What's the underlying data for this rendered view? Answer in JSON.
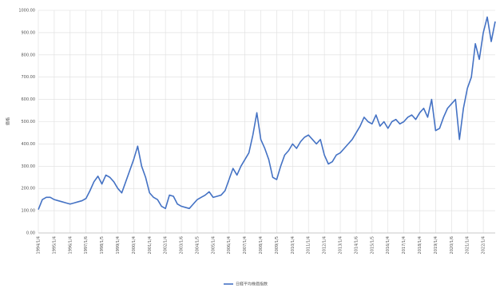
{
  "chart_data": {
    "type": "line",
    "y_label": "価格",
    "categories": [
      "1994/1/4",
      null,
      null,
      null,
      "1995/1/4",
      null,
      null,
      null,
      "1996/1/4",
      null,
      null,
      null,
      "1997/1/6",
      null,
      null,
      null,
      "1998/1/5",
      null,
      null,
      null,
      "1999/1/4",
      null,
      null,
      null,
      "2000/1/4",
      null,
      null,
      null,
      "2001/1/4",
      null,
      null,
      null,
      "2002/1/4",
      null,
      null,
      null,
      "2003/1/6",
      null,
      null,
      null,
      "2004/1/5",
      null,
      null,
      null,
      "2005/1/4",
      null,
      null,
      null,
      "2006/1/4",
      null,
      null,
      null,
      "2007/1/4",
      null,
      null,
      null,
      "2008/1/4",
      null,
      null,
      null,
      "2009/1/5",
      null,
      null,
      null,
      "2010/1/4",
      null,
      null,
      null,
      "2011/1/4",
      null,
      null,
      null,
      "2012/1/4",
      null,
      null,
      null,
      "2013/1/4",
      null,
      null,
      null,
      "2014/1/6",
      null,
      null,
      null,
      "2015/1/5",
      null,
      null,
      null,
      "2016/1/4",
      null,
      null,
      null,
      "2017/1/4",
      null,
      null,
      null,
      "2018/1/4",
      null,
      null,
      null,
      "2019/1/4",
      null,
      null,
      null,
      "2020/1/6",
      null,
      null,
      null,
      "2021/1/4",
      null,
      null,
      null,
      "2022/1/4",
      null,
      null,
      null
    ],
    "series": [
      {
        "name": "日経平均株価指数",
        "color": "#4472c4",
        "values": [
          105,
          150,
          160,
          160,
          150,
          145,
          140,
          135,
          130,
          135,
          140,
          145,
          155,
          190,
          230,
          255,
          220,
          260,
          250,
          230,
          200,
          180,
          230,
          280,
          330,
          390,
          300,
          250,
          180,
          160,
          150,
          120,
          110,
          170,
          165,
          130,
          120,
          115,
          110,
          130,
          150,
          160,
          170,
          185,
          160,
          165,
          170,
          190,
          240,
          290,
          260,
          300,
          330,
          360,
          440,
          540,
          420,
          380,
          330,
          250,
          240,
          300,
          350,
          370,
          400,
          380,
          410,
          430,
          440,
          420,
          400,
          420,
          350,
          310,
          320,
          350,
          360,
          380,
          400,
          420,
          450,
          480,
          520,
          500,
          490,
          530,
          480,
          500,
          470,
          500,
          510,
          490,
          500,
          520,
          530,
          510,
          540,
          560,
          520,
          600,
          460,
          470,
          520,
          560,
          580,
          600,
          420,
          560,
          650,
          700,
          850,
          780,
          900,
          970,
          860,
          950
        ]
      }
    ],
    "ylim": [
      0,
      1000
    ],
    "yticks": [
      {
        "value": 0,
        "label": "0.00"
      },
      {
        "value": 100,
        "label": "100.00"
      },
      {
        "value": 200,
        "label": "200.00"
      },
      {
        "value": 300,
        "label": "300.00"
      },
      {
        "value": 400,
        "label": "400.00"
      },
      {
        "value": 500,
        "label": "500.00"
      },
      {
        "value": 600,
        "label": "600.00"
      },
      {
        "value": 700,
        "label": "700.00"
      },
      {
        "value": 800,
        "label": "800.00"
      },
      {
        "value": 900,
        "label": "900.00"
      },
      {
        "value": 1000,
        "label": "1000.00"
      }
    ],
    "grid": true
  }
}
